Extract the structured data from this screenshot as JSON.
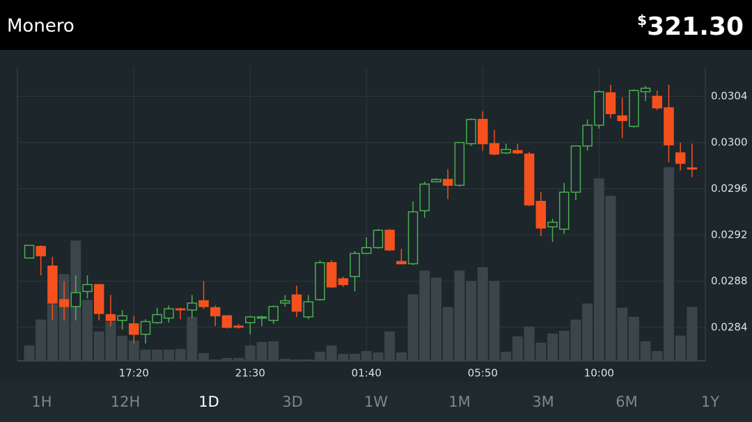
{
  "header": {
    "title": "Monero",
    "currency": "$",
    "price": "321.30"
  },
  "chart_data": {
    "type": "candlestick",
    "categories": [
      null,
      null,
      null,
      null,
      null,
      null,
      null,
      null,
      null,
      "17:20",
      null,
      null,
      null,
      null,
      null,
      null,
      null,
      null,
      null,
      "21:30",
      null,
      null,
      null,
      null,
      null,
      null,
      null,
      null,
      null,
      "01:40",
      null,
      null,
      null,
      null,
      null,
      null,
      null,
      null,
      null,
      "05:50",
      null,
      null,
      null,
      null,
      null,
      null,
      null,
      null,
      null,
      "10:00",
      null,
      null,
      null,
      null,
      null,
      null,
      null,
      null
    ],
    "open": [
      0.029,
      0.0291,
      0.02893,
      0.02864,
      0.02858,
      0.02871,
      0.02877,
      0.02851,
      0.02846,
      0.02843,
      0.02834,
      0.02844,
      0.02848,
      0.02856,
      0.02855,
      0.02863,
      0.02857,
      0.0285,
      0.02841,
      0.02844,
      0.02848,
      0.02846,
      0.02861,
      0.02868,
      0.02849,
      0.02864,
      0.02896,
      0.02882,
      0.02884,
      0.02904,
      0.02909,
      0.02924,
      0.02897,
      0.02895,
      0.02941,
      0.02966,
      0.02968,
      0.02963,
      0.02999,
      0.0302,
      0.02999,
      0.02991,
      0.02993,
      0.0299,
      0.02949,
      0.02927,
      0.02925,
      0.02957,
      0.02997,
      0.03015,
      0.03043,
      0.03023,
      0.03014,
      0.03044,
      0.0304,
      0.0303,
      0.02991,
      0.02978
    ],
    "high": [
      0.02911,
      0.02911,
      0.02901,
      0.0288,
      0.02885,
      0.02885,
      0.02877,
      0.02868,
      0.02855,
      0.0285,
      0.02847,
      0.02857,
      0.02859,
      0.02857,
      0.02868,
      0.0288,
      0.02859,
      0.0285,
      0.02843,
      0.0285,
      0.0285,
      0.02859,
      0.02868,
      0.02876,
      0.02868,
      0.02898,
      0.02898,
      0.02884,
      0.02906,
      0.02918,
      0.02925,
      0.02925,
      0.02908,
      0.02949,
      0.02966,
      0.02969,
      0.02977,
      0.03,
      0.03021,
      0.03027,
      0.03011,
      0.02999,
      0.02999,
      0.02992,
      0.02957,
      0.02934,
      0.02965,
      0.02997,
      0.0302,
      0.03045,
      0.0305,
      0.03039,
      0.03046,
      0.03049,
      0.03045,
      0.0305,
      0.03,
      0.02999
    ],
    "low": [
      0.029,
      0.02885,
      0.02846,
      0.02846,
      0.02846,
      0.02865,
      0.02846,
      0.02841,
      0.02838,
      0.02826,
      0.02826,
      0.02843,
      0.02844,
      0.02847,
      0.02848,
      0.02856,
      0.02841,
      0.02839,
      0.02839,
      0.02834,
      0.02841,
      0.02843,
      0.02858,
      0.02849,
      0.02847,
      0.02863,
      0.02874,
      0.02875,
      0.02871,
      0.02904,
      0.02908,
      0.02906,
      0.02895,
      0.02894,
      0.02935,
      0.02966,
      0.02951,
      0.02962,
      0.02997,
      0.02993,
      0.02989,
      0.0299,
      0.0299,
      0.02945,
      0.02919,
      0.02914,
      0.02921,
      0.0295,
      0.02993,
      0.03012,
      0.03021,
      0.03004,
      0.03013,
      0.03036,
      0.03028,
      0.02983,
      0.02976,
      0.0297
    ],
    "close": [
      0.02911,
      0.02902,
      0.02861,
      0.02858,
      0.0287,
      0.02877,
      0.02852,
      0.02846,
      0.0285,
      0.02834,
      0.02845,
      0.02851,
      0.02856,
      0.02856,
      0.02861,
      0.02858,
      0.0285,
      0.0284,
      0.02841,
      0.02849,
      0.02849,
      0.02858,
      0.02863,
      0.02854,
      0.02862,
      0.02896,
      0.02875,
      0.02877,
      0.02904,
      0.02909,
      0.02924,
      0.02907,
      0.02895,
      0.0294,
      0.02964,
      0.02968,
      0.02963,
      0.03,
      0.0302,
      0.02999,
      0.0299,
      0.02994,
      0.02991,
      0.02946,
      0.02926,
      0.02931,
      0.02957,
      0.02997,
      0.03015,
      0.03044,
      0.03025,
      0.03019,
      0.03045,
      0.03047,
      0.0303,
      0.02998,
      0.02982,
      0.02978
    ],
    "volume": [
      22,
      59,
      81,
      124,
      172,
      87,
      42,
      56,
      36,
      29,
      16,
      16,
      16,
      17,
      63,
      11,
      2,
      4,
      4,
      22,
      27,
      28,
      3,
      2,
      2,
      13,
      22,
      10,
      10,
      14,
      12,
      42,
      12,
      95,
      129,
      119,
      77,
      129,
      114,
      134,
      114,
      13,
      35,
      49,
      26,
      39,
      43,
      59,
      82,
      261,
      236,
      76,
      63,
      28,
      14,
      277,
      36,
      77
    ],
    "up_color": "#4caf50",
    "down_color": "#f4511e",
    "volume_color": "#3b464b",
    "ylim": [
      0.02811,
      0.03065
    ],
    "yticks": [
      0.0284,
      0.0288,
      0.0292,
      0.0296,
      {
        "value": 0.03,
        "label": "0.0300"
      },
      0.0304
    ],
    "grid": true
  },
  "tabs": {
    "items": [
      "1H",
      "12H",
      "1D",
      "3D",
      "1W",
      "1M",
      "3M",
      "6M",
      "1Y"
    ],
    "selected": "1D"
  }
}
